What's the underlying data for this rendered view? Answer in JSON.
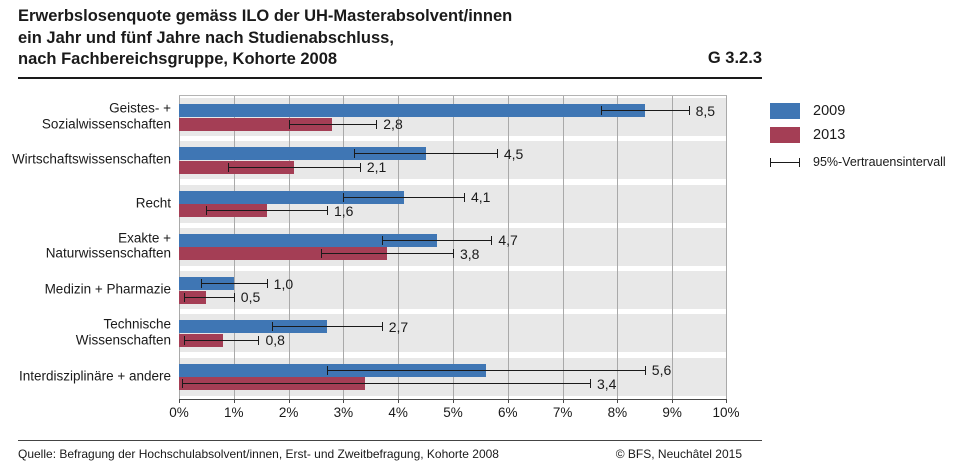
{
  "header": {
    "title_lines": [
      "Erwerbslosenquote gemäss ILO der UH-Masterabsolvent/innen",
      "ein Jahr und fünf Jahre nach Studienabschluss,",
      "nach Fachbereichsgruppe, Kohorte 2008"
    ],
    "figure_id": "G 3.2.3"
  },
  "legend": {
    "items": [
      {
        "label": "2009",
        "color": "#3f76b4"
      },
      {
        "label": "2013",
        "color": "#a43e55"
      }
    ],
    "ci_label": "95%-Vertrauensintervall"
  },
  "footer": {
    "source": "Quelle: Befragung der Hochschulabsolvent/innen, Erst- und Zweitbefragung, Kohorte 2008",
    "copyright": "© BFS, Neuchâtel 2015"
  },
  "chart_data": {
    "type": "bar",
    "orientation": "horizontal",
    "title": "Erwerbslosenquote gemäss ILO der UH-Masterabsolvent/innen ein Jahr und fünf Jahre nach Studienabschluss, nach Fachbereichsgruppe, Kohorte 2008",
    "categories": [
      "Geistes- +\nSozialwissenschaften",
      "Wirtschaftswissenschaften",
      "Recht",
      "Exakte +\nNaturwissenschaften",
      "Medizin + Pharmazie",
      "Technische\nWissenschaften",
      "Interdisziplinäre + andere"
    ],
    "series": [
      {
        "name": "2009",
        "color": "#3f76b4",
        "values": [
          8.5,
          4.5,
          4.1,
          4.7,
          1.0,
          2.7,
          5.6
        ],
        "value_labels": [
          "8,5",
          "4,5",
          "4,1",
          "4,7",
          "1,0",
          "2,7",
          "5,6"
        ],
        "ci_low": [
          7.7,
          3.2,
          3.0,
          3.7,
          0.4,
          1.7,
          2.7
        ],
        "ci_high": [
          9.3,
          5.8,
          5.2,
          5.7,
          1.6,
          3.7,
          8.5
        ]
      },
      {
        "name": "2013",
        "color": "#a43e55",
        "values": [
          2.8,
          2.1,
          1.6,
          3.8,
          0.5,
          0.8,
          3.4
        ],
        "value_labels": [
          "2,8",
          "2,1",
          "1,6",
          "3,8",
          "0,5",
          "0,8",
          "3,4"
        ],
        "ci_low": [
          2.0,
          0.9,
          0.5,
          2.6,
          0.1,
          0.1,
          0.05
        ],
        "ci_high": [
          3.6,
          3.3,
          2.7,
          5.0,
          1.0,
          1.45,
          7.5
        ]
      }
    ],
    "xlabel": "",
    "ylabel": "",
    "xlim": [
      0,
      10
    ],
    "x_ticks": [
      "0%",
      "1%",
      "2%",
      "3%",
      "4%",
      "5%",
      "6%",
      "7%",
      "8%",
      "9%",
      "10%"
    ],
    "grid": true,
    "plot_background": "#e8e8e8",
    "ci_note": "95%-Vertrauensintervall",
    "legend_position": "top-right"
  }
}
